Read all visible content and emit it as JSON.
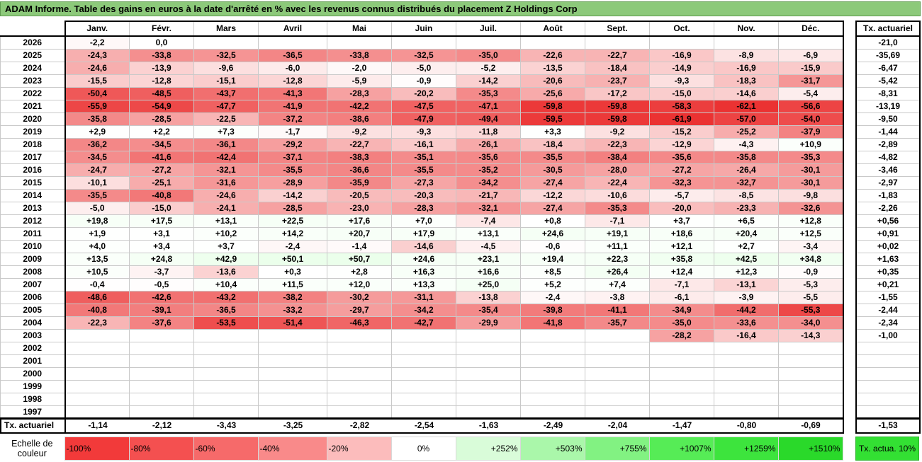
{
  "title": "ADAM Informe. Table des gains en euros à la date d'arrêté en % avec les revenus connus distribués du placement Z Holdings Corp",
  "months": [
    "Janv.",
    "Févr.",
    "Mars",
    "Avril",
    "Mai",
    "Juin",
    "Juil.",
    "Août",
    "Sept.",
    "Oct.",
    "Nov.",
    "Déc."
  ],
  "side_header": "Tx. actuariel",
  "rows": [
    {
      "year": "2026",
      "cells": [
        "-2,2",
        "0,0",
        "",
        "",
        "",
        "",
        "",
        "",
        "",
        "",
        "",
        ""
      ],
      "tx": "-21,0"
    },
    {
      "year": "2025",
      "cells": [
        "-24,3",
        "-33,8",
        "-32,5",
        "-36,5",
        "-33,8",
        "-32,5",
        "-35,0",
        "-22,6",
        "-22,7",
        "-16,9",
        "-8,9",
        "-6,9"
      ],
      "tx": "-35,69"
    },
    {
      "year": "2024",
      "cells": [
        "-24,6",
        "-13,9",
        "-9,6",
        "-6,0",
        "-2,0",
        "-5,0",
        "-5,2",
        "-13,5",
        "-18,4",
        "-14,9",
        "-16,9",
        "-15,9"
      ],
      "tx": "-6,47"
    },
    {
      "year": "2023",
      "cells": [
        "-15,5",
        "-12,8",
        "-15,1",
        "-12,8",
        "-5,9",
        "-0,9",
        "-14,2",
        "-20,6",
        "-23,7",
        "-9,3",
        "-18,3",
        "-31,7"
      ],
      "tx": "-5,42"
    },
    {
      "year": "2022",
      "cells": [
        "-50,4",
        "-48,5",
        "-43,7",
        "-41,3",
        "-28,3",
        "-20,2",
        "-35,3",
        "-25,6",
        "-17,2",
        "-15,0",
        "-14,6",
        "-5,4"
      ],
      "tx": "-8,31"
    },
    {
      "year": "2021",
      "cells": [
        "-55,9",
        "-54,9",
        "-47,7",
        "-41,9",
        "-42,2",
        "-47,5",
        "-47,1",
        "-59,8",
        "-59,8",
        "-58,3",
        "-62,1",
        "-56,6"
      ],
      "tx": "-13,19"
    },
    {
      "year": "2020",
      "cells": [
        "-35,8",
        "-28,5",
        "-22,5",
        "-37,2",
        "-38,6",
        "-47,9",
        "-49,4",
        "-59,5",
        "-59,8",
        "-61,9",
        "-57,0",
        "-54,0"
      ],
      "tx": "-9,50"
    },
    {
      "year": "2019",
      "cells": [
        "+2,9",
        "+2,2",
        "+7,3",
        "-1,7",
        "-9,2",
        "-9,3",
        "-11,8",
        "+3,3",
        "-9,2",
        "-15,2",
        "-25,2",
        "-37,9"
      ],
      "tx": "-1,44"
    },
    {
      "year": "2018",
      "cells": [
        "-36,2",
        "-34,5",
        "-36,1",
        "-29,2",
        "-22,7",
        "-16,1",
        "-26,1",
        "-18,4",
        "-22,3",
        "-12,9",
        "-4,3",
        "+10,9"
      ],
      "tx": "-2,89"
    },
    {
      "year": "2017",
      "cells": [
        "-34,5",
        "-41,6",
        "-42,4",
        "-37,1",
        "-38,3",
        "-35,1",
        "-35,6",
        "-35,5",
        "-38,4",
        "-35,6",
        "-35,8",
        "-35,3"
      ],
      "tx": "-4,82"
    },
    {
      "year": "2016",
      "cells": [
        "-24,7",
        "-27,2",
        "-32,1",
        "-35,5",
        "-36,6",
        "-35,5",
        "-35,2",
        "-30,5",
        "-28,0",
        "-27,2",
        "-26,4",
        "-30,1"
      ],
      "tx": "-3,46"
    },
    {
      "year": "2015",
      "cells": [
        "-10,1",
        "-25,1",
        "-31,6",
        "-28,9",
        "-35,9",
        "-27,3",
        "-34,2",
        "-27,4",
        "-22,4",
        "-32,3",
        "-32,7",
        "-30,1"
      ],
      "tx": "-2,97"
    },
    {
      "year": "2014",
      "cells": [
        "-35,5",
        "-40,8",
        "-24,6",
        "-14,2",
        "-20,5",
        "-20,3",
        "-21,7",
        "-12,2",
        "-10,6",
        "-5,7",
        "-8,5",
        "-9,8"
      ],
      "tx": "-1,83"
    },
    {
      "year": "2013",
      "cells": [
        "-5,0",
        "-15,0",
        "-24,1",
        "-28,5",
        "-23,0",
        "-28,3",
        "-32,1",
        "-27,4",
        "-35,3",
        "-20,0",
        "-23,3",
        "-32,6"
      ],
      "tx": "-2,26"
    },
    {
      "year": "2012",
      "cells": [
        "+19,8",
        "+17,5",
        "+13,1",
        "+22,5",
        "+17,6",
        "+7,0",
        "-7,4",
        "+0,8",
        "-7,1",
        "+3,7",
        "+6,5",
        "+12,8"
      ],
      "tx": "+0,56"
    },
    {
      "year": "2011",
      "cells": [
        "+1,9",
        "+3,1",
        "+10,2",
        "+14,2",
        "+20,7",
        "+17,9",
        "+13,1",
        "+24,6",
        "+19,1",
        "+18,6",
        "+20,4",
        "+12,5"
      ],
      "tx": "+0,91"
    },
    {
      "year": "2010",
      "cells": [
        "+4,0",
        "+3,4",
        "+3,7",
        "-2,4",
        "-1,4",
        "-14,6",
        "-4,5",
        "-0,6",
        "+11,1",
        "+12,1",
        "+2,7",
        "-3,4"
      ],
      "tx": "+0,02"
    },
    {
      "year": "2009",
      "cells": [
        "+13,5",
        "+24,8",
        "+42,9",
        "+50,1",
        "+50,7",
        "+24,6",
        "+23,1",
        "+19,4",
        "+22,3",
        "+35,8",
        "+42,5",
        "+34,8"
      ],
      "tx": "+1,63"
    },
    {
      "year": "2008",
      "cells": [
        "+10,5",
        "-3,7",
        "-13,6",
        "+0,3",
        "+2,8",
        "+16,3",
        "+16,6",
        "+8,5",
        "+26,4",
        "+12,4",
        "+12,3",
        "-0,9"
      ],
      "tx": "+0,35"
    },
    {
      "year": "2007",
      "cells": [
        "-0,4",
        "-0,5",
        "+10,4",
        "+11,5",
        "+12,0",
        "+13,3",
        "+25,0",
        "+5,2",
        "+7,4",
        "-7,1",
        "-13,1",
        "-5,3"
      ],
      "tx": "+0,21"
    },
    {
      "year": "2006",
      "cells": [
        "-48,6",
        "-42,6",
        "-43,2",
        "-38,2",
        "-30,2",
        "-31,1",
        "-13,8",
        "-2,4",
        "-3,8",
        "-6,1",
        "-3,9",
        "-5,5"
      ],
      "tx": "-1,55"
    },
    {
      "year": "2005",
      "cells": [
        "-40,8",
        "-39,1",
        "-36,5",
        "-33,2",
        "-29,7",
        "-34,2",
        "-35,4",
        "-39,8",
        "-41,1",
        "-34,9",
        "-44,2",
        "-55,3"
      ],
      "tx": "-2,44"
    },
    {
      "year": "2004",
      "cells": [
        "-22,3",
        "-37,6",
        "-53,5",
        "-51,4",
        "-46,3",
        "-42,7",
        "-29,9",
        "-41,8",
        "-35,7",
        "-35,0",
        "-33,6",
        "-34,0"
      ],
      "tx": "-2,34"
    },
    {
      "year": "2003",
      "cells": [
        "",
        "",
        "",
        "",
        "",
        "",
        "",
        "",
        "",
        "-28,2",
        "-16,4",
        "-14,3"
      ],
      "tx": "-1,00"
    },
    {
      "year": "2002",
      "cells": [
        "",
        "",
        "",
        "",
        "",
        "",
        "",
        "",
        "",
        "",
        "",
        ""
      ],
      "tx": ""
    },
    {
      "year": "2001",
      "cells": [
        "",
        "",
        "",
        "",
        "",
        "",
        "",
        "",
        "",
        "",
        "",
        ""
      ],
      "tx": ""
    },
    {
      "year": "2000",
      "cells": [
        "",
        "",
        "",
        "",
        "",
        "",
        "",
        "",
        "",
        "",
        "",
        ""
      ],
      "tx": ""
    },
    {
      "year": "1999",
      "cells": [
        "",
        "",
        "",
        "",
        "",
        "",
        "",
        "",
        "",
        "",
        "",
        ""
      ],
      "tx": ""
    },
    {
      "year": "1998",
      "cells": [
        "",
        "",
        "",
        "",
        "",
        "",
        "",
        "",
        "",
        "",
        "",
        ""
      ],
      "tx": ""
    },
    {
      "year": "1997",
      "cells": [
        "",
        "",
        "",
        "",
        "",
        "",
        "",
        "",
        "",
        "",
        "",
        ""
      ],
      "tx": ""
    }
  ],
  "totals": {
    "label": "Tx. actuariel",
    "values": [
      "-1,14",
      "-2,12",
      "-3,43",
      "-3,25",
      "-2,82",
      "-2,54",
      "-1,63",
      "-2,49",
      "-2,04",
      "-1,47",
      "-0,80",
      "-0,69"
    ],
    "side": "-1,53"
  },
  "scale": {
    "label": "Echelle de couleur",
    "items": [
      {
        "text": "-100%",
        "color": "#f23a3a"
      },
      {
        "text": "-80%",
        "color": "#f45050"
      },
      {
        "text": "-60%",
        "color": "#f66a6a"
      },
      {
        "text": "-40%",
        "color": "#f98a8a"
      },
      {
        "text": "-20%",
        "color": "#fcbcbc"
      },
      {
        "text": "0%",
        "color": "#ffffff"
      },
      {
        "text": "+252%",
        "color": "#d9fcd9"
      },
      {
        "text": "+503%",
        "color": "#aaf7aa"
      },
      {
        "text": "+755%",
        "color": "#82f282"
      },
      {
        "text": "+1007%",
        "color": "#56ec56"
      },
      {
        "text": "+1259%",
        "color": "#3de43d"
      },
      {
        "text": "+1510%",
        "color": "#2ad92a"
      }
    ],
    "side": "Tx. actua. 10%"
  }
}
